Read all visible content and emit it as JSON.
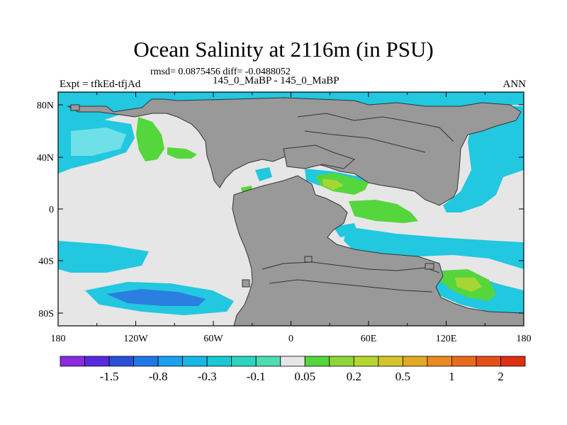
{
  "title": "Ocean Salinity at 2116m (in PSU)",
  "stats": "rmsd= 0.0875456 diff= -0.0488052",
  "left_label": "Expt = tfkEd-tfjAd",
  "center_label": "145_0_MaBP - 145_0_MaBP",
  "right_label": "ANN",
  "colors": {
    "land": "#999999",
    "ocean_near_zero": "#e6e6e6",
    "cyan": "#22c7e0",
    "light_cyan": "#6fe0e8",
    "blue": "#2a7fe0",
    "green": "#55d63c",
    "yellow_green": "#a6d636"
  },
  "map": {
    "lon_ticks": [
      "180",
      "120W",
      "60W",
      "0",
      "60E",
      "120E",
      "180"
    ],
    "lat_ticks": [
      "80N",
      "40N",
      "0",
      "40S",
      "80S"
    ]
  },
  "colorbar": {
    "colors": [
      "#8a2be2",
      "#5a28e0",
      "#2850d8",
      "#1f78e6",
      "#1aa0ef",
      "#16b9e6",
      "#19c9d6",
      "#2ad6c0",
      "#4fdcb0",
      "#e6e6e6",
      "#55d63c",
      "#8ed637",
      "#b5d630",
      "#d4c62a",
      "#e2a926",
      "#e88a21",
      "#e86c1d",
      "#e44f18",
      "#dd2f12"
    ],
    "labels": [
      "-1.5",
      "-0.8",
      "-0.3",
      "-0.1",
      "0.05",
      "0.2",
      "0.5",
      "1",
      "2"
    ]
  }
}
